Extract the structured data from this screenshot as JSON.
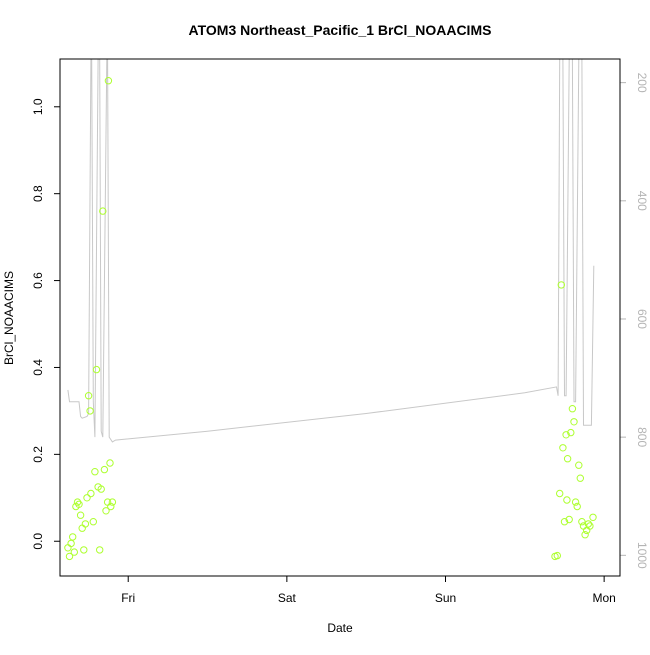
{
  "chart_data": {
    "type": "scatter",
    "title": "ATOM3 Northeast_Pacific_1 BrCl_NOAACIMS",
    "xlabel": "Date",
    "ylabel": "BrCl_NOAACIMS",
    "x_ticks": [
      "Fri",
      "Sat",
      "Sun",
      "Mon"
    ],
    "x_tick_days": [
      1,
      2,
      3,
      4
    ],
    "xlim": [
      0.57,
      4.1
    ],
    "ylim": [
      -0.08,
      1.11
    ],
    "y_ticks": [
      "0.0",
      "0.2",
      "0.4",
      "0.6",
      "0.8",
      "1.0"
    ],
    "y_tick_values": [
      0,
      0.2,
      0.4,
      0.6,
      0.8,
      1.0
    ],
    "y2_ticks": [
      "200",
      "400",
      "600",
      "800",
      "1000"
    ],
    "y2_tick_values": [
      200,
      400,
      600,
      800,
      1000
    ],
    "y2lim": [
      1035,
      160
    ],
    "grid": false,
    "colors": {
      "points": "#adff2f",
      "line": "#c8c8c8",
      "axis": "#000000",
      "right_axis": "#b4b4b4"
    },
    "series": [
      {
        "kind": "points",
        "points": [
          [
            0.62,
            -0.015
          ],
          [
            0.63,
            -0.035
          ],
          [
            0.64,
            -0.005
          ],
          [
            0.65,
            0.01
          ],
          [
            0.66,
            -0.025
          ],
          [
            0.67,
            0.08
          ],
          [
            0.68,
            0.09
          ],
          [
            0.69,
            0.085
          ],
          [
            0.7,
            0.06
          ],
          [
            0.71,
            0.03
          ],
          [
            0.72,
            -0.02
          ],
          [
            0.73,
            0.04
          ],
          [
            0.74,
            0.1
          ],
          [
            0.75,
            0.335
          ],
          [
            0.76,
            0.3
          ],
          [
            0.765,
            0.11
          ],
          [
            0.78,
            0.045
          ],
          [
            0.79,
            0.16
          ],
          [
            0.8,
            0.395
          ],
          [
            0.81,
            0.125
          ],
          [
            0.82,
            -0.02
          ],
          [
            0.83,
            0.12
          ],
          [
            0.84,
            0.76
          ],
          [
            0.85,
            0.165
          ],
          [
            0.86,
            0.07
          ],
          [
            0.87,
            0.09
          ],
          [
            0.875,
            1.06
          ],
          [
            0.885,
            0.18
          ],
          [
            0.89,
            0.08
          ],
          [
            0.9,
            0.09
          ],
          [
            3.69,
            -0.035
          ],
          [
            3.705,
            -0.033
          ],
          [
            3.72,
            0.11
          ],
          [
            3.73,
            0.59
          ],
          [
            3.74,
            0.215
          ],
          [
            3.75,
            0.045
          ],
          [
            3.76,
            0.245
          ],
          [
            3.765,
            0.095
          ],
          [
            3.77,
            0.19
          ],
          [
            3.78,
            0.05
          ],
          [
            3.79,
            0.25
          ],
          [
            3.8,
            0.305
          ],
          [
            3.81,
            0.275
          ],
          [
            3.82,
            0.09
          ],
          [
            3.83,
            0.08
          ],
          [
            3.84,
            0.175
          ],
          [
            3.85,
            0.145
          ],
          [
            3.86,
            0.045
          ],
          [
            3.87,
            0.035
          ],
          [
            3.88,
            0.015
          ],
          [
            3.89,
            0.025
          ],
          [
            3.9,
            0.04
          ],
          [
            3.91,
            0.035
          ],
          [
            3.93,
            0.055
          ]
        ]
      },
      {
        "kind": "line",
        "axis": "right",
        "points": [
          [
            0.62,
            720
          ],
          [
            0.63,
            740
          ],
          [
            0.66,
            740
          ],
          [
            0.69,
            740
          ],
          [
            0.7,
            765
          ],
          [
            0.71,
            768
          ],
          [
            0.74,
            765
          ],
          [
            0.75,
            760
          ],
          [
            0.765,
            160
          ],
          [
            0.77,
            160
          ],
          [
            0.78,
            740
          ],
          [
            0.79,
            800
          ],
          [
            0.81,
            160
          ],
          [
            0.82,
            160
          ],
          [
            0.83,
            790
          ],
          [
            0.84,
            800
          ],
          [
            0.865,
            160
          ],
          [
            0.87,
            160
          ],
          [
            0.88,
            800
          ],
          [
            0.9,
            808
          ],
          [
            0.92,
            805
          ],
          [
            1.5,
            790
          ],
          [
            2.5,
            760
          ],
          [
            3.5,
            725
          ],
          [
            3.7,
            715
          ],
          [
            3.71,
            730
          ],
          [
            3.72,
            160
          ],
          [
            3.74,
            160
          ],
          [
            3.75,
            730
          ],
          [
            3.76,
            730
          ],
          [
            3.78,
            160
          ],
          [
            3.8,
            160
          ],
          [
            3.81,
            740
          ],
          [
            3.82,
            740
          ],
          [
            3.84,
            160
          ],
          [
            3.86,
            160
          ],
          [
            3.87,
            780
          ],
          [
            3.92,
            780
          ],
          [
            3.935,
            510
          ]
        ]
      }
    ]
  }
}
